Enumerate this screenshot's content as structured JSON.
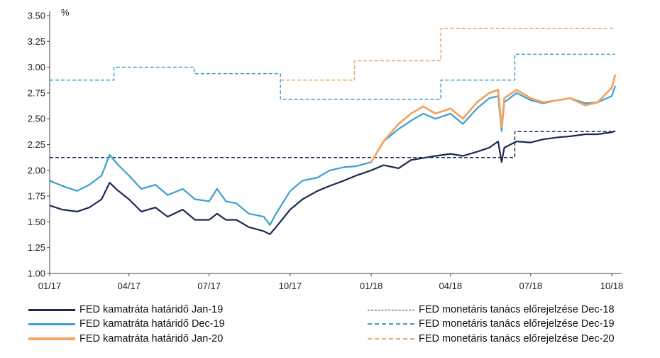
{
  "chart_data": {
    "type": "line",
    "unit_label": "%",
    "title": "",
    "xlabel": "",
    "ylabel": "",
    "ylim": [
      1.0,
      3.5
    ],
    "y_ticks": [
      "1.00",
      "1.25",
      "1.50",
      "1.75",
      "2.00",
      "2.25",
      "2.50",
      "2.75",
      "3.00",
      "3.25",
      "3.50"
    ],
    "x_ticks": [
      "01/17",
      "04/17",
      "07/17",
      "10/17",
      "01/18",
      "04/18",
      "07/18",
      "10/18"
    ],
    "grid": false,
    "legend_position": "bottom",
    "series": [
      {
        "name": "FED kamatráta határidő Jan-19",
        "style": "solid",
        "color": "#1b2a55",
        "x": [
          "2017-01-01",
          "2017-01-15",
          "2017-02-01",
          "2017-02-15",
          "2017-03-01",
          "2017-03-10",
          "2017-03-20",
          "2017-04-01",
          "2017-04-15",
          "2017-05-01",
          "2017-05-15",
          "2017-06-01",
          "2017-06-15",
          "2017-07-01",
          "2017-07-10",
          "2017-07-20",
          "2017-08-01",
          "2017-08-15",
          "2017-09-01",
          "2017-09-08",
          "2017-09-15",
          "2017-10-01",
          "2017-10-15",
          "2017-11-01",
          "2017-11-15",
          "2017-12-01",
          "2017-12-15",
          "2018-01-01",
          "2018-01-15",
          "2018-02-01",
          "2018-02-15",
          "2018-03-01",
          "2018-03-15",
          "2018-04-01",
          "2018-04-15",
          "2018-05-01",
          "2018-05-15",
          "2018-05-25",
          "2018-05-29",
          "2018-06-01",
          "2018-06-15",
          "2018-07-01",
          "2018-07-15",
          "2018-08-01",
          "2018-08-15",
          "2018-09-01",
          "2018-09-15",
          "2018-10-01",
          "2018-10-05"
        ],
        "values": [
          1.66,
          1.62,
          1.6,
          1.64,
          1.72,
          1.88,
          1.8,
          1.72,
          1.6,
          1.64,
          1.55,
          1.62,
          1.52,
          1.52,
          1.58,
          1.52,
          1.52,
          1.45,
          1.41,
          1.38,
          1.45,
          1.62,
          1.72,
          1.8,
          1.85,
          1.9,
          1.95,
          2.0,
          2.05,
          2.02,
          2.1,
          2.12,
          2.14,
          2.16,
          2.14,
          2.18,
          2.22,
          2.28,
          2.08,
          2.22,
          2.28,
          2.27,
          2.3,
          2.32,
          2.33,
          2.35,
          2.35,
          2.37,
          2.38
        ]
      },
      {
        "name": "FED kamatráta határidő Dec-19",
        "style": "solid",
        "color": "#3b9fd1",
        "x": [
          "2017-01-01",
          "2017-01-15",
          "2017-02-01",
          "2017-02-15",
          "2017-03-01",
          "2017-03-10",
          "2017-03-20",
          "2017-04-01",
          "2017-04-15",
          "2017-05-01",
          "2017-05-15",
          "2017-06-01",
          "2017-06-15",
          "2017-07-01",
          "2017-07-10",
          "2017-07-20",
          "2017-08-01",
          "2017-08-15",
          "2017-09-01",
          "2017-09-08",
          "2017-09-15",
          "2017-10-01",
          "2017-10-15",
          "2017-11-01",
          "2017-11-15",
          "2017-12-01",
          "2017-12-15",
          "2018-01-01",
          "2018-01-15",
          "2018-02-01",
          "2018-02-15",
          "2018-03-01",
          "2018-03-15",
          "2018-04-01",
          "2018-04-15",
          "2018-05-01",
          "2018-05-15",
          "2018-05-25",
          "2018-05-29",
          "2018-06-01",
          "2018-06-15",
          "2018-07-01",
          "2018-07-15",
          "2018-08-01",
          "2018-08-15",
          "2018-09-01",
          "2018-09-15",
          "2018-10-01",
          "2018-10-05"
        ],
        "values": [
          1.9,
          1.85,
          1.8,
          1.86,
          1.95,
          2.15,
          2.05,
          1.95,
          1.82,
          1.86,
          1.76,
          1.82,
          1.72,
          1.7,
          1.82,
          1.7,
          1.68,
          1.58,
          1.55,
          1.47,
          1.58,
          1.8,
          1.9,
          1.93,
          2.0,
          2.03,
          2.04,
          2.08,
          2.28,
          2.4,
          2.48,
          2.55,
          2.5,
          2.55,
          2.45,
          2.6,
          2.7,
          2.72,
          2.38,
          2.66,
          2.75,
          2.68,
          2.65,
          2.68,
          2.7,
          2.65,
          2.66,
          2.72,
          2.82
        ]
      },
      {
        "name": "FED kamatráta határidő Jan-20",
        "style": "solid",
        "color": "#f4a460",
        "x": [
          "2018-01-01",
          "2018-01-15",
          "2018-02-01",
          "2018-02-15",
          "2018-03-01",
          "2018-03-15",
          "2018-04-01",
          "2018-04-15",
          "2018-05-01",
          "2018-05-15",
          "2018-05-25",
          "2018-05-29",
          "2018-06-01",
          "2018-06-15",
          "2018-07-01",
          "2018-07-15",
          "2018-08-01",
          "2018-08-15",
          "2018-09-01",
          "2018-09-15",
          "2018-10-01",
          "2018-10-05"
        ],
        "values": [
          2.08,
          2.28,
          2.45,
          2.55,
          2.62,
          2.55,
          2.6,
          2.5,
          2.66,
          2.75,
          2.78,
          2.42,
          2.7,
          2.78,
          2.7,
          2.66,
          2.68,
          2.7,
          2.63,
          2.66,
          2.8,
          2.93
        ]
      },
      {
        "name": "FED monetáris tanács előrejelzése Dec-18",
        "style": "dashed",
        "color": "#1b2a55",
        "x": [
          "2017-01-01",
          "2018-06-13",
          "2018-06-13",
          "2018-10-05"
        ],
        "values": [
          2.125,
          2.125,
          2.375,
          2.375
        ]
      },
      {
        "name": "FED monetáris tanács előrejelzése Dec-19",
        "style": "dashed",
        "color": "#3b9fd1",
        "x": [
          "2017-01-01",
          "2017-03-15",
          "2017-03-15",
          "2017-06-14",
          "2017-06-14",
          "2017-09-20",
          "2017-09-20",
          "2018-03-21",
          "2018-03-21",
          "2018-06-13",
          "2018-06-13",
          "2018-10-05"
        ],
        "values": [
          2.875,
          2.875,
          3.0,
          3.0,
          2.938,
          2.938,
          2.688,
          2.688,
          2.875,
          2.875,
          3.125,
          3.125
        ]
      },
      {
        "name": "FED monetáris tanács előrejelzése Dec-20",
        "style": "dashed",
        "color": "#f4a460",
        "x": [
          "2017-09-20",
          "2017-12-13",
          "2017-12-13",
          "2018-03-21",
          "2018-03-21",
          "2018-10-05"
        ],
        "values": [
          2.875,
          2.875,
          3.063,
          3.063,
          3.375,
          3.375
        ]
      }
    ]
  }
}
